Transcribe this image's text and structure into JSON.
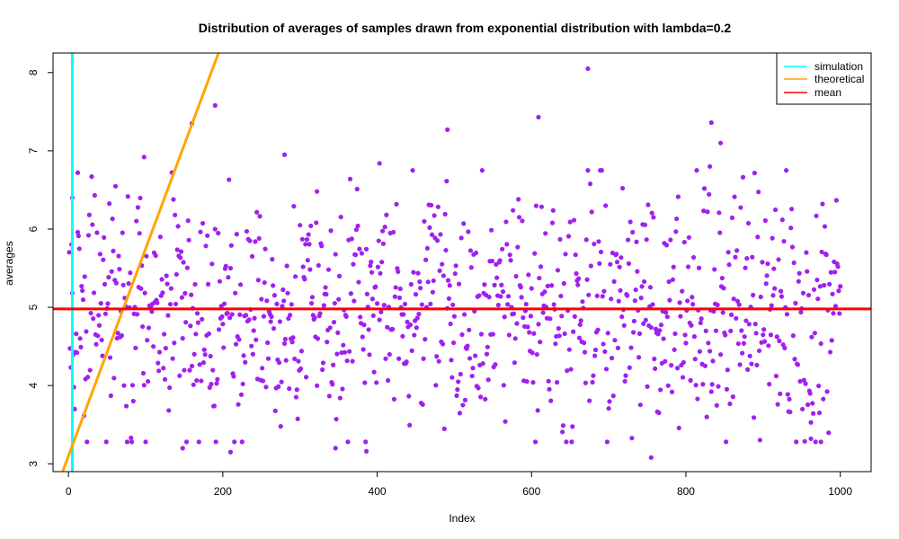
{
  "chart_data": {
    "type": "scatter",
    "title": "Distribution of averages of samples drawn from exponential distribution with lambda=0.2",
    "xlabel": "Index",
    "ylabel": "averages",
    "xlim": [
      -20,
      1040
    ],
    "ylim": [
      2.9,
      8.25
    ],
    "xticks": [
      0,
      200,
      400,
      600,
      800,
      1000
    ],
    "yticks": [
      3,
      4,
      5,
      6,
      7,
      8
    ],
    "grid": false,
    "point_color": "#A020F0",
    "n_points": 1000,
    "point_stats": {
      "mean": 4.98,
      "min": 3.08,
      "max": 8.05
    },
    "highlight_points": [
      {
        "x": 5,
        "y": 6.4
      },
      {
        "x": 12,
        "y": 6.72
      },
      {
        "x": 98,
        "y": 6.92
      },
      {
        "x": 160,
        "y": 7.35
      },
      {
        "x": 190,
        "y": 7.58
      },
      {
        "x": 280,
        "y": 6.95
      },
      {
        "x": 322,
        "y": 6.48
      },
      {
        "x": 403,
        "y": 6.84
      },
      {
        "x": 491,
        "y": 7.27
      },
      {
        "x": 609,
        "y": 7.43
      },
      {
        "x": 673,
        "y": 8.05
      },
      {
        "x": 833,
        "y": 7.36
      },
      {
        "x": 845,
        "y": 7.1
      },
      {
        "x": 831,
        "y": 6.8
      },
      {
        "x": 148,
        "y": 3.2
      },
      {
        "x": 210,
        "y": 3.15
      },
      {
        "x": 386,
        "y": 3.16
      },
      {
        "x": 755,
        "y": 3.08
      },
      {
        "x": 962,
        "y": 3.32
      },
      {
        "x": 975,
        "y": 3.28
      },
      {
        "x": 346,
        "y": 3.2
      }
    ],
    "lines": [
      {
        "name": "simulation",
        "kind": "vertical",
        "x": 5,
        "color": "#00FFFF"
      },
      {
        "name": "theoretical",
        "kind": "abline",
        "intercept": 3.1,
        "slope": 0.0265,
        "color": "#FFA500"
      },
      {
        "name": "mean",
        "kind": "horizontal",
        "y": 4.98,
        "color": "#FF0000"
      }
    ],
    "legend": {
      "position": "top-right",
      "items": [
        {
          "label": "simulation",
          "color": "#00FFFF"
        },
        {
          "label": "theoretical",
          "color": "#FFA500"
        },
        {
          "label": "mean",
          "color": "#FF0000"
        }
      ]
    }
  }
}
